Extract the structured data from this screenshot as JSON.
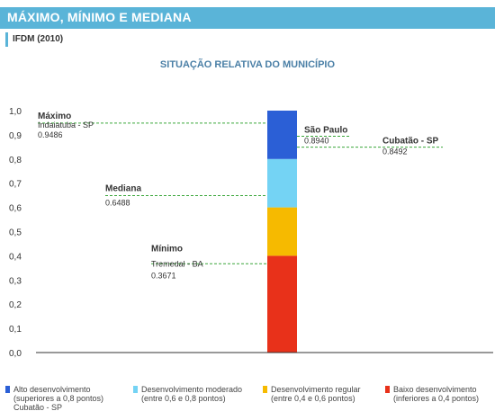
{
  "header": {
    "title": "MÁXIMO, MÍNIMO E MEDIANA"
  },
  "subheader": {
    "label": "IFDM (2010)"
  },
  "chart_data": {
    "type": "bar",
    "title": "SITUAÇÃO RELATIVA DO MUNICÍPIO",
    "ylim": [
      0,
      1
    ],
    "yticks": [
      "1,0",
      "0,9",
      "0,8",
      "0,7",
      "0,6",
      "0,5",
      "0,4",
      "0,3",
      "0,2",
      "0,1",
      "0,0"
    ],
    "grid": false,
    "segments": [
      {
        "name": "Baixo desenvolvimento",
        "from": 0.0,
        "to": 0.4,
        "color": "#e8311a"
      },
      {
        "name": "Desenvolvimento regular",
        "from": 0.4,
        "to": 0.6,
        "color": "#f6ba00"
      },
      {
        "name": "Desenvolvimento moderado",
        "from": 0.6,
        "to": 0.8,
        "color": "#74d3f4"
      },
      {
        "name": "Alto desenvolvimento",
        "from": 0.8,
        "to": 1.0,
        "color": "#2b5fd6"
      }
    ],
    "markers": [
      {
        "label": "Máximo",
        "sub": "Indaiatuba - SP",
        "value": 0.9486,
        "value_text": "0.9486",
        "side": "left"
      },
      {
        "label": "Mediana",
        "sub": "",
        "value": 0.6488,
        "value_text": "0.6488",
        "side": "left"
      },
      {
        "label": "Mínimo",
        "sub": "Tremedal - BA",
        "value": 0.3671,
        "value_text": "0.3671",
        "side": "left"
      },
      {
        "label": "São Paulo",
        "sub": "",
        "value": 0.894,
        "value_text": "0.8940",
        "side": "right"
      },
      {
        "label": "Cubatão - SP",
        "sub": "",
        "value": 0.8492,
        "value_text": "0.8492",
        "side": "right"
      }
    ]
  },
  "legend": [
    {
      "line1": "Alto desenvolvimento",
      "line2": "(superiores a 0,8 pontos)",
      "line3": "Cubatão - SP",
      "color": "#2b5fd6"
    },
    {
      "line1": "Desenvolvimento moderado",
      "line2": "(entre 0,6 e 0,8 pontos)",
      "line3": "",
      "color": "#74d3f4"
    },
    {
      "line1": "Desenvolvimento regular",
      "line2": "(entre 0,4 e 0,6 pontos)",
      "line3": "",
      "color": "#f6ba00"
    },
    {
      "line1": "Baixo desenvolvimento",
      "line2": "(inferiores a 0,4 pontos)",
      "line3": "",
      "color": "#e8311a"
    }
  ],
  "colors": {
    "header": "#5ab4d8",
    "marker_line": "#3aa63a",
    "axis": "#333333"
  }
}
